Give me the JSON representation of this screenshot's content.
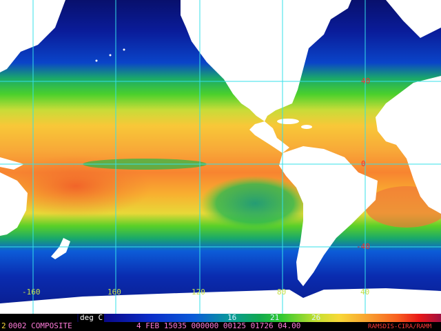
{
  "grid_labels": {
    "longitude": [
      "-160",
      "160",
      "120",
      "80",
      "40"
    ],
    "latitude": [
      "40",
      "0",
      "-40"
    ]
  },
  "legend": {
    "unit": "deg C",
    "ticks": [
      "16",
      "21",
      "26"
    ]
  },
  "footer": {
    "channel": "2",
    "product": "0002 COMPOSITE",
    "datetime": "4 FEB 15035 000000 00125 01726 04.00",
    "credit": "RAMSDIS-CIRA/RAMM"
  },
  "colors": {
    "grid": "#34e0e8",
    "lon_label": "#c6e04a",
    "lat_label": "#ff2a2a",
    "footer_text": "#ff7bd8",
    "land": "#ffffff",
    "background": "#000000"
  }
}
